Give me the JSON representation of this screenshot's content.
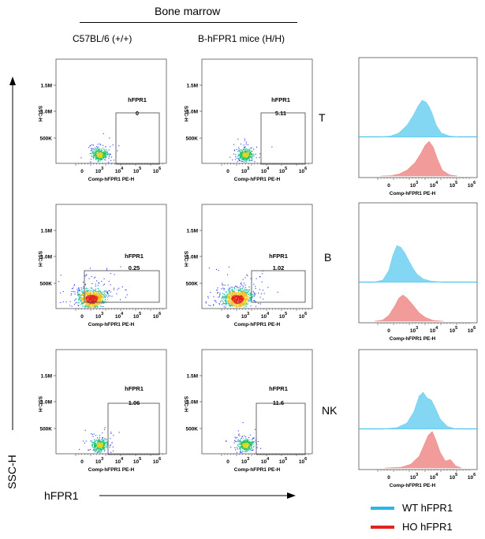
{
  "figure": {
    "title": "Bone marrow",
    "column_headers": [
      "C57BL/6 (+/+)",
      "B-hFPR1 mice (H/H)"
    ],
    "row_labels": [
      "T",
      "B",
      "NK"
    ],
    "y_axis_label": "SSC-H",
    "x_axis_label": "hFPR1"
  },
  "scatter_axes": {
    "y_ylabel": "SSC-H",
    "x_label": "Comp-hFPR1 PE-H",
    "y_ticks": [
      "1.5M",
      "1.0M",
      "500K"
    ],
    "x_ticks": [
      "0",
      "10",
      "10",
      "10",
      "10"
    ],
    "x_tick_exponents": [
      "",
      "3",
      "4",
      "5",
      "6"
    ]
  },
  "histogram_axes": {
    "x_label": "Comp-hFPR1 PE-H",
    "x_ticks": [
      "0",
      "10",
      "10",
      "10",
      "10"
    ],
    "x_tick_exponents": [
      "",
      "3",
      "4",
      "5",
      "6"
    ]
  },
  "legend": [
    {
      "label": "WT hFPR1",
      "color": "#29b6e8"
    },
    {
      "label": "HO hFPR1",
      "color": "#e0231c"
    }
  ],
  "colors": {
    "wt_fill": "#6fd0f0",
    "wt_line": "#29b6e8",
    "ho_fill": "#f08a8a",
    "ho_line": "#e0231c"
  },
  "chart_data": [
    {
      "type": "scatter",
      "population": "T",
      "strain": "C57BL/6 (+/+)",
      "gate_label": "hFPR1",
      "gate_value": "0",
      "density": "sparse"
    },
    {
      "type": "scatter",
      "population": "T",
      "strain": "B-hFPR1 mice (H/H)",
      "gate_label": "hFPR1",
      "gate_value": "5.11",
      "density": "sparse"
    },
    {
      "type": "scatter",
      "population": "B",
      "strain": "C57BL/6 (+/+)",
      "gate_label": "hFPR1",
      "gate_value": "0.25",
      "density": "dense"
    },
    {
      "type": "scatter",
      "population": "B",
      "strain": "B-hFPR1 mice (H/H)",
      "gate_label": "hFPR1",
      "gate_value": "1.02",
      "density": "dense"
    },
    {
      "type": "scatter",
      "population": "NK",
      "strain": "C57BL/6 (+/+)",
      "gate_label": "hFPR1",
      "gate_value": "1.06",
      "density": "sparse"
    },
    {
      "type": "scatter",
      "population": "NK",
      "strain": "B-hFPR1 mice (H/H)",
      "gate_label": "hFPR1",
      "gate_value": "11.6",
      "density": "sparse"
    },
    {
      "type": "area",
      "population": "T",
      "series": [
        {
          "name": "WT hFPR1",
          "x": [
            -0.5,
            0,
            0.4,
            0.8,
            1.1,
            1.35,
            1.55,
            1.75,
            1.9,
            2.05,
            2.25,
            2.5,
            2.9,
            3.3
          ],
          "values": [
            0,
            0.02,
            0.1,
            0.3,
            0.55,
            0.8,
            0.95,
            0.9,
            0.78,
            0.6,
            0.3,
            0.1,
            0.02,
            0
          ]
        },
        {
          "name": "HO hFPR1",
          "x": [
            -0.5,
            0,
            0.4,
            0.8,
            1.2,
            1.5,
            1.7,
            1.9,
            2.1,
            2.3,
            2.55,
            2.9,
            3.3
          ],
          "values": [
            0,
            0.01,
            0.05,
            0.15,
            0.35,
            0.6,
            0.8,
            0.9,
            0.75,
            0.45,
            0.15,
            0.03,
            0
          ]
        }
      ]
    },
    {
      "type": "area",
      "population": "B",
      "series": [
        {
          "name": "WT hFPR1",
          "x": [
            -0.8,
            -0.4,
            -0.1,
            0.1,
            0.3,
            0.5,
            0.7,
            0.9,
            1.1,
            1.3,
            1.6,
            2.0,
            2.5
          ],
          "values": [
            0,
            0.05,
            0.3,
            0.7,
            0.95,
            0.9,
            0.75,
            0.55,
            0.35,
            0.2,
            0.08,
            0.02,
            0
          ]
        },
        {
          "name": "HO hFPR1",
          "x": [
            -0.8,
            -0.4,
            -0.1,
            0.2,
            0.4,
            0.6,
            0.8,
            1.0,
            1.2,
            1.4,
            1.7,
            2.1,
            2.6
          ],
          "values": [
            0,
            0.03,
            0.15,
            0.4,
            0.6,
            0.68,
            0.6,
            0.48,
            0.35,
            0.22,
            0.1,
            0.02,
            0
          ]
        }
      ]
    },
    {
      "type": "area",
      "population": "NK",
      "series": [
        {
          "name": "WT hFPR1",
          "x": [
            -0.3,
            0.3,
            0.8,
            1.15,
            1.4,
            1.6,
            1.8,
            2.0,
            2.2,
            2.45,
            2.8,
            3.2
          ],
          "values": [
            0,
            0.03,
            0.15,
            0.45,
            0.85,
            0.95,
            0.8,
            0.75,
            0.55,
            0.25,
            0.06,
            0
          ]
        },
        {
          "name": "HO hFPR1",
          "x": [
            -0.3,
            0.5,
            1.0,
            1.4,
            1.65,
            1.85,
            2.05,
            2.25,
            2.45,
            2.7,
            2.95,
            3.2,
            3.5
          ],
          "values": [
            0,
            0.02,
            0.1,
            0.3,
            0.6,
            0.85,
            0.95,
            0.7,
            0.4,
            0.18,
            0.22,
            0.06,
            0
          ]
        }
      ]
    }
  ]
}
